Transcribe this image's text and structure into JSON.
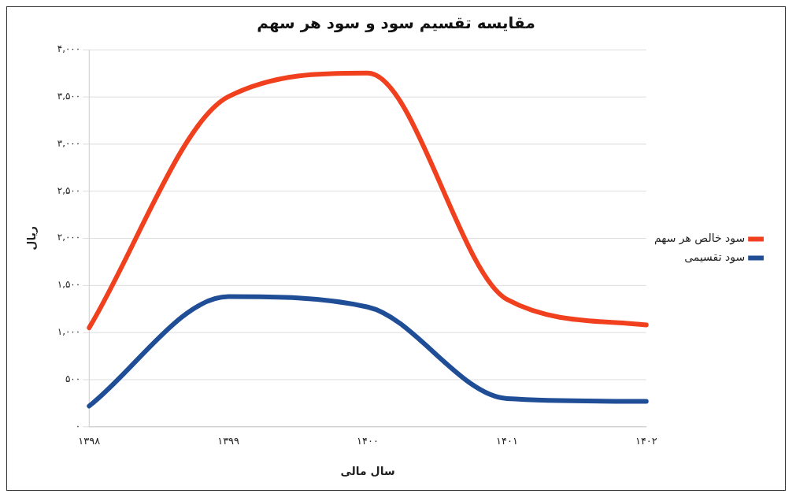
{
  "chart_data": {
    "type": "line",
    "title": "مقایسه تقسیم سود و سود هر سهم",
    "xlabel": "سال مالی",
    "ylabel": "ریال",
    "categories": [
      "۱۳۹۸",
      "۱۳۹۹",
      "۱۴۰۰",
      "۱۴۰۱",
      "۱۴۰۲"
    ],
    "series": [
      {
        "name": "سود خالص هر سهم",
        "color": "#f0401e",
        "values": [
          1050,
          3500,
          3750,
          1350,
          1080
        ]
      },
      {
        "name": "سود تقسیمی",
        "color": "#1f4e96",
        "values": [
          220,
          1380,
          1270,
          300,
          270
        ]
      }
    ],
    "ylim": [
      0,
      4000
    ],
    "yticks": [
      {
        "value": 0,
        "label": "۰"
      },
      {
        "value": 500,
        "label": "۵۰۰"
      },
      {
        "value": 1000,
        "label": "۱,۰۰۰"
      },
      {
        "value": 1500,
        "label": "۱,۵۰۰"
      },
      {
        "value": 2000,
        "label": "۲,۰۰۰"
      },
      {
        "value": 2500,
        "label": "۲,۵۰۰"
      },
      {
        "value": 3000,
        "label": "۳,۰۰۰"
      },
      {
        "value": 3500,
        "label": "۳,۵۰۰"
      },
      {
        "value": 4000,
        "label": "۴,۰۰۰"
      }
    ],
    "grid": "y",
    "legend": "right",
    "marker": "none",
    "line_style": "solid"
  }
}
